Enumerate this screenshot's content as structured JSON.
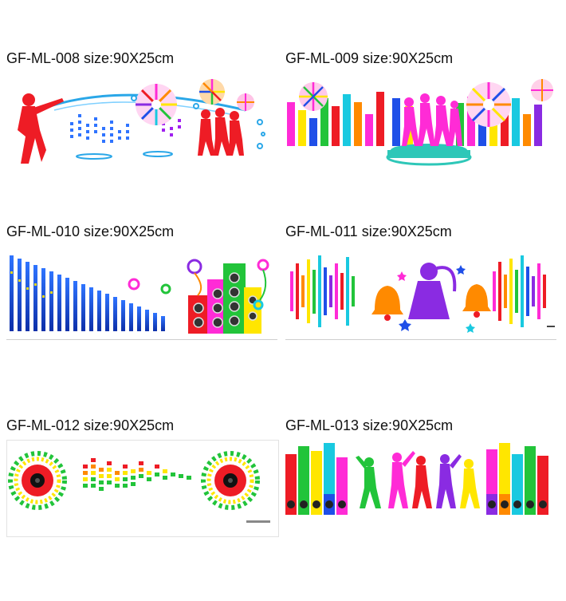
{
  "products": [
    {
      "code": "GF-ML-008",
      "size": "size:90X25cm"
    },
    {
      "code": "GF-ML-009",
      "size": "size:90X25cm"
    },
    {
      "code": "GF-ML-010",
      "size": "size:90X25cm"
    },
    {
      "code": "GF-ML-011",
      "size": "size:90X25cm"
    },
    {
      "code": "GF-ML-012",
      "size": "size:90X25cm"
    },
    {
      "code": "GF-ML-013",
      "size": "size:90X25cm"
    }
  ],
  "colors": {
    "red": "#ee1c25",
    "orange": "#ff8a00",
    "yellow": "#ffe600",
    "green": "#22c43a",
    "cyan": "#19c9e0",
    "blue": "#1f4fe8",
    "magenta": "#ff2bd6",
    "purple": "#8a2be2",
    "teal": "#2ec7b8"
  },
  "icons": [
    "dancer-silhouette-icon",
    "firework-burst-icon",
    "equalizer-bars-icon",
    "speaker-icon",
    "bell-icon",
    "star-icon"
  ]
}
